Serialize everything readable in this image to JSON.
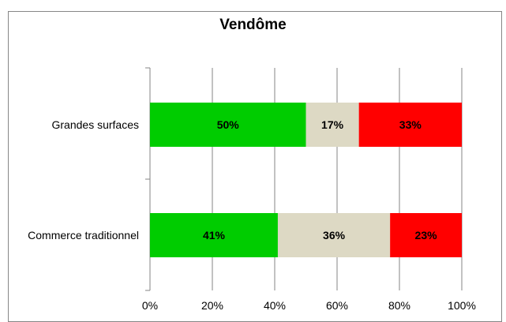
{
  "chart_data": {
    "type": "bar",
    "orientation": "horizontal",
    "stacked": true,
    "percent": true,
    "title": "Vendôme",
    "categories": [
      "Grandes surfaces",
      "Commerce traditionnel"
    ],
    "series": [
      {
        "values": [
          50,
          41
        ],
        "color": "#00cc00"
      },
      {
        "values": [
          17,
          36
        ],
        "color": "#ddd9c4"
      },
      {
        "values": [
          33,
          23
        ],
        "color": "#ff0000"
      }
    ],
    "xlim": [
      0,
      100
    ],
    "x_ticks": [
      "0%",
      "20%",
      "40%",
      "60%",
      "80%",
      "100%"
    ],
    "grid": true,
    "legend": "none"
  }
}
